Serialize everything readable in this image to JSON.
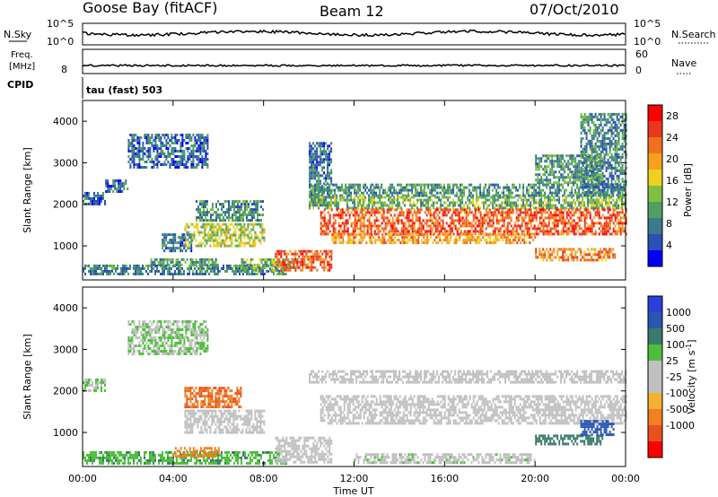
{
  "header": {
    "station": "Goose Bay (fitACF)",
    "beam": "Beam 12",
    "date": "07/Oct/2010"
  },
  "noise_panel": {
    "left_label": "N.Sky",
    "right_label": "N.Search",
    "left_ticks": [
      "10^5",
      "10^0"
    ],
    "right_ticks": [
      "10^5",
      "10^0"
    ]
  },
  "freq_panel": {
    "left_label_top": "Freq.",
    "left_label_bottom": "[MHz]",
    "right_label": "Nave",
    "left_ticks": [
      "8"
    ],
    "right_ticks": [
      "60",
      "0"
    ]
  },
  "cpid": {
    "label": "CPID",
    "text": "tau (fast) 503"
  },
  "colors": {
    "power": [
      "#0000ff",
      "#2a4fb5",
      "#3b7a8a",
      "#4fa060",
      "#7fc040",
      "#f0d020",
      "#f6a020",
      "#f07020",
      "#e83820",
      "#ff0000"
    ],
    "velocity": [
      "#2a40d8",
      "#2a56b0",
      "#3a7a6a",
      "#4cbf3a",
      "#c0c0c0",
      "#c0c0c0",
      "#f5b030",
      "#f08020",
      "#e85020",
      "#ff0000"
    ]
  },
  "chart_data": [
    {
      "type": "heatmap",
      "panel": "power",
      "ylabel": "Slant Range [km]",
      "ylim": [
        180,
        4500
      ],
      "yticks": [
        1000,
        2000,
        3000,
        4000
      ],
      "xlim": [
        0,
        24
      ],
      "colorbar": {
        "label": "Power [dB]",
        "ticks": [
          "4",
          "8",
          "12",
          "16",
          "20",
          "24",
          "28"
        ],
        "range": [
          0,
          30
        ]
      },
      "regions": [
        {
          "t0": 0.0,
          "t1": 1.0,
          "r0": 2000,
          "r1": 2300,
          "value": 6
        },
        {
          "t0": 1.0,
          "t1": 2.0,
          "r0": 2300,
          "r1": 2600,
          "value": 6
        },
        {
          "t0": 2.0,
          "t1": 5.5,
          "r0": 2900,
          "r1": 3700,
          "value": 6
        },
        {
          "t0": 3.5,
          "t1": 4.8,
          "r0": 900,
          "r1": 1300,
          "value": 7
        },
        {
          "t0": 4.5,
          "t1": 8.0,
          "r0": 1000,
          "r1": 1550,
          "value": 14
        },
        {
          "t0": 5.0,
          "t1": 8.0,
          "r0": 1600,
          "r1": 2100,
          "value": 9
        },
        {
          "t0": 0.0,
          "t1": 9.0,
          "r0": 300,
          "r1": 550,
          "value": 8
        },
        {
          "t0": 3.0,
          "t1": 6.0,
          "r0": 550,
          "r1": 700,
          "value": 10
        },
        {
          "t0": 7.0,
          "t1": 9.5,
          "r0": 400,
          "r1": 700,
          "value": 12
        },
        {
          "t0": 8.5,
          "t1": 11.0,
          "r0": 400,
          "r1": 900,
          "value": 24
        },
        {
          "t0": 10.0,
          "t1": 11.0,
          "r0": 2000,
          "r1": 3500,
          "value": 7
        },
        {
          "t0": 10.0,
          "t1": 24.0,
          "r0": 2200,
          "r1": 2500,
          "value": 9
        },
        {
          "t0": 10.0,
          "t1": 24.0,
          "r0": 1900,
          "r1": 2200,
          "value": 12
        },
        {
          "t0": 10.5,
          "t1": 24.0,
          "r0": 1300,
          "r1": 1900,
          "value": 24
        },
        {
          "t0": 11.0,
          "t1": 20.0,
          "r0": 1100,
          "r1": 1300,
          "value": 20
        },
        {
          "t0": 20.0,
          "t1": 23.5,
          "r0": 650,
          "r1": 950,
          "value": 22
        },
        {
          "t0": 22.0,
          "t1": 24.0,
          "r0": 2200,
          "r1": 4200,
          "value": 8
        },
        {
          "t0": 20.0,
          "t1": 23.0,
          "r0": 2500,
          "r1": 3200,
          "value": 10
        }
      ]
    },
    {
      "type": "heatmap",
      "panel": "velocity",
      "ylabel": "Slant Range [km]",
      "ylim": [
        180,
        4500
      ],
      "yticks": [
        1000,
        2000,
        3000,
        4000
      ],
      "xlim": [
        0,
        24
      ],
      "xticks": [
        "00:00",
        "04:00",
        "08:00",
        "12:00",
        "16:00",
        "20:00",
        "00:00"
      ],
      "xlabel": "Time UT",
      "colorbar": {
        "label": "Velocity [m s",
        "label_sup": "-1",
        "label_close": "]",
        "ticks": [
          "1000",
          "500",
          "100",
          "25",
          "-25",
          "-100",
          "-500",
          "-1000"
        ]
      },
      "regions": [
        {
          "t0": 0.0,
          "t1": 1.0,
          "r0": 2000,
          "r1": 2300,
          "value": 25
        },
        {
          "t0": 2.0,
          "t1": 5.5,
          "r0": 2900,
          "r1": 3700,
          "value": 25
        },
        {
          "t0": 4.5,
          "t1": 8.0,
          "r0": 1000,
          "r1": 1550,
          "value": 0
        },
        {
          "t0": 4.5,
          "t1": 7.0,
          "r0": 1600,
          "r1": 2100,
          "value": -300
        },
        {
          "t0": 0.0,
          "t1": 9.0,
          "r0": 250,
          "r1": 550,
          "value": 50
        },
        {
          "t0": 4.0,
          "t1": 6.0,
          "r0": 450,
          "r1": 650,
          "value": -100
        },
        {
          "t0": 8.5,
          "t1": 11.0,
          "r0": 300,
          "r1": 900,
          "value": 0
        },
        {
          "t0": 10.0,
          "t1": 24.0,
          "r0": 2200,
          "r1": 2500,
          "value": 0
        },
        {
          "t0": 10.5,
          "t1": 24.0,
          "r0": 1200,
          "r1": 1900,
          "value": 0
        },
        {
          "t0": 20.0,
          "t1": 23.0,
          "r0": 700,
          "r1": 950,
          "value": 150
        },
        {
          "t0": 22.0,
          "t1": 23.5,
          "r0": 950,
          "r1": 1300,
          "value": 400
        },
        {
          "t0": 12.0,
          "t1": 20.0,
          "r0": 300,
          "r1": 500,
          "value": 10
        }
      ]
    }
  ]
}
